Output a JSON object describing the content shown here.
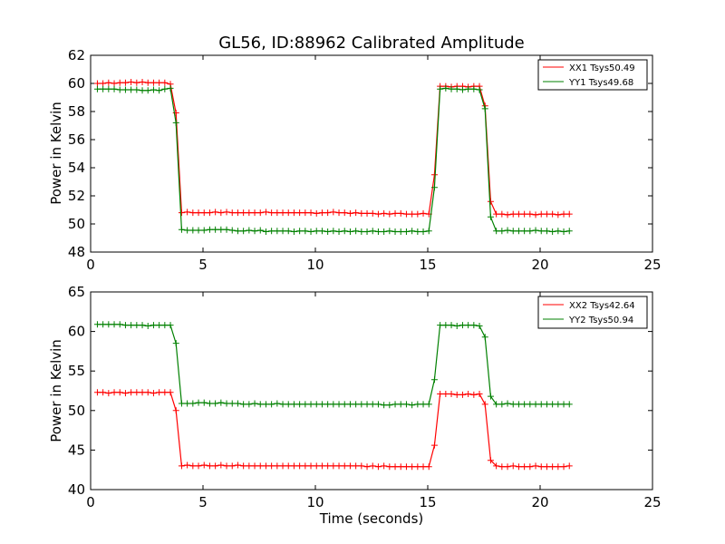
{
  "figure": {
    "title": "GL56, ID:88962 Calibrated Amplitude"
  },
  "chart_data": [
    {
      "type": "line",
      "title": "GL56, ID:88962 Calibrated Amplitude",
      "xlabel": "",
      "ylabel": "Power in Kelvin",
      "xlim": [
        0,
        25
      ],
      "ylim": [
        48,
        62
      ],
      "xticks": [
        0,
        5,
        10,
        15,
        20,
        25
      ],
      "yticks": [
        48,
        50,
        52,
        54,
        56,
        58,
        60,
        62
      ],
      "grid": false,
      "legend_position": "top-right",
      "x": [
        0.3,
        0.55,
        0.8,
        1.05,
        1.3,
        1.55,
        1.8,
        2.05,
        2.3,
        2.55,
        2.8,
        3.05,
        3.3,
        3.55,
        3.8,
        4.05,
        4.3,
        4.55,
        4.8,
        5.05,
        5.3,
        5.55,
        5.8,
        6.05,
        6.3,
        6.55,
        6.8,
        7.05,
        7.3,
        7.55,
        7.8,
        8.05,
        8.3,
        8.55,
        8.8,
        9.05,
        9.3,
        9.55,
        9.8,
        10.05,
        10.3,
        10.55,
        10.8,
        11.05,
        11.3,
        11.55,
        11.8,
        12.05,
        12.3,
        12.55,
        12.8,
        13.05,
        13.3,
        13.55,
        13.8,
        14.05,
        14.3,
        14.55,
        14.8,
        15.05,
        15.3,
        15.55,
        15.8,
        16.05,
        16.3,
        16.55,
        16.8,
        17.05,
        17.3,
        17.55,
        17.8,
        18.05,
        18.3,
        18.55,
        18.8,
        19.05,
        19.3,
        19.55,
        19.8,
        20.05,
        20.3,
        20.55,
        20.8,
        21.05,
        21.3
      ],
      "series": [
        {
          "name": "XX1 Tsys50.49",
          "color": "#ff0000",
          "values": [
            60.0,
            60.0,
            60.05,
            60.0,
            60.05,
            60.05,
            60.1,
            60.05,
            60.1,
            60.05,
            60.05,
            60.05,
            60.05,
            59.95,
            57.9,
            50.8,
            50.85,
            50.8,
            50.8,
            50.8,
            50.8,
            50.85,
            50.8,
            50.85,
            50.8,
            50.8,
            50.8,
            50.8,
            50.8,
            50.8,
            50.85,
            50.8,
            50.8,
            50.8,
            50.8,
            50.8,
            50.8,
            50.8,
            50.8,
            50.75,
            50.8,
            50.8,
            50.85,
            50.8,
            50.8,
            50.75,
            50.8,
            50.75,
            50.75,
            50.75,
            50.7,
            50.75,
            50.7,
            50.75,
            50.75,
            50.7,
            50.7,
            50.7,
            50.75,
            50.7,
            53.5,
            59.8,
            59.8,
            59.75,
            59.8,
            59.8,
            59.75,
            59.8,
            59.8,
            58.4,
            51.6,
            50.7,
            50.7,
            50.65,
            50.7,
            50.7,
            50.7,
            50.7,
            50.65,
            50.7,
            50.7,
            50.7,
            50.65,
            50.7,
            50.7
          ]
        },
        {
          "name": "YY1 Tsys49.68",
          "color": "#008000",
          "values": [
            59.6,
            59.6,
            59.6,
            59.6,
            59.55,
            59.55,
            59.55,
            59.55,
            59.5,
            59.5,
            59.55,
            59.5,
            59.6,
            59.65,
            57.2,
            49.6,
            49.55,
            49.55,
            49.55,
            49.55,
            49.6,
            49.6,
            49.6,
            49.6,
            49.55,
            49.5,
            49.5,
            49.55,
            49.5,
            49.55,
            49.45,
            49.5,
            49.5,
            49.5,
            49.5,
            49.45,
            49.5,
            49.5,
            49.45,
            49.5,
            49.5,
            49.45,
            49.5,
            49.45,
            49.5,
            49.45,
            49.5,
            49.45,
            49.45,
            49.5,
            49.45,
            49.45,
            49.5,
            49.45,
            49.45,
            49.45,
            49.5,
            49.45,
            49.45,
            49.5,
            52.6,
            59.6,
            59.65,
            59.6,
            59.6,
            59.55,
            59.6,
            59.6,
            59.55,
            58.2,
            50.5,
            49.5,
            49.5,
            49.55,
            49.5,
            49.5,
            49.5,
            49.5,
            49.55,
            49.5,
            49.5,
            49.45,
            49.5,
            49.45,
            49.5
          ]
        }
      ]
    },
    {
      "type": "line",
      "title": "",
      "xlabel": "Time (seconds)",
      "ylabel": "Power in Kelvin",
      "xlim": [
        0,
        25
      ],
      "ylim": [
        40,
        65
      ],
      "xticks": [
        0,
        5,
        10,
        15,
        20,
        25
      ],
      "yticks": [
        40,
        45,
        50,
        55,
        60,
        65
      ],
      "grid": false,
      "legend_position": "top-right",
      "x": [
        0.3,
        0.55,
        0.8,
        1.05,
        1.3,
        1.55,
        1.8,
        2.05,
        2.3,
        2.55,
        2.8,
        3.05,
        3.3,
        3.55,
        3.8,
        4.05,
        4.3,
        4.55,
        4.8,
        5.05,
        5.3,
        5.55,
        5.8,
        6.05,
        6.3,
        6.55,
        6.8,
        7.05,
        7.3,
        7.55,
        7.8,
        8.05,
        8.3,
        8.55,
        8.8,
        9.05,
        9.3,
        9.55,
        9.8,
        10.05,
        10.3,
        10.55,
        10.8,
        11.05,
        11.3,
        11.55,
        11.8,
        12.05,
        12.3,
        12.55,
        12.8,
        13.05,
        13.3,
        13.55,
        13.8,
        14.05,
        14.3,
        14.55,
        14.8,
        15.05,
        15.3,
        15.55,
        15.8,
        16.05,
        16.3,
        16.55,
        16.8,
        17.05,
        17.3,
        17.55,
        17.8,
        18.05,
        18.3,
        18.55,
        18.8,
        19.05,
        19.3,
        19.55,
        19.8,
        20.05,
        20.3,
        20.55,
        20.8,
        21.05,
        21.3
      ],
      "series": [
        {
          "name": "XX2 Tsys42.64",
          "color": "#ff0000",
          "values": [
            52.3,
            52.3,
            52.2,
            52.3,
            52.3,
            52.2,
            52.3,
            52.3,
            52.3,
            52.3,
            52.2,
            52.3,
            52.3,
            52.3,
            50.0,
            43.0,
            43.1,
            43.0,
            43.0,
            43.1,
            43.0,
            43.0,
            43.1,
            43.0,
            43.0,
            43.1,
            43.0,
            43.0,
            43.0,
            43.0,
            43.0,
            43.0,
            43.0,
            43.0,
            43.0,
            43.0,
            43.0,
            43.0,
            43.0,
            43.0,
            43.0,
            43.0,
            43.0,
            43.0,
            43.0,
            43.0,
            43.0,
            43.0,
            42.9,
            43.0,
            42.9,
            43.0,
            42.9,
            42.9,
            42.9,
            42.9,
            42.9,
            42.9,
            42.9,
            42.9,
            45.6,
            52.1,
            52.1,
            52.1,
            52.0,
            52.0,
            52.1,
            52.0,
            52.1,
            50.8,
            43.7,
            43.0,
            42.9,
            42.9,
            43.0,
            42.9,
            42.9,
            42.9,
            43.0,
            42.9,
            42.9,
            42.9,
            42.9,
            42.9,
            43.0
          ]
        },
        {
          "name": "YY2 Tsys50.94",
          "color": "#008000",
          "values": [
            60.9,
            60.9,
            60.9,
            60.9,
            60.9,
            60.8,
            60.8,
            60.8,
            60.8,
            60.7,
            60.8,
            60.8,
            60.8,
            60.8,
            58.5,
            50.9,
            50.9,
            50.9,
            51.0,
            51.0,
            50.9,
            50.9,
            51.0,
            50.9,
            50.9,
            50.9,
            50.8,
            50.8,
            50.9,
            50.8,
            50.8,
            50.8,
            50.9,
            50.8,
            50.8,
            50.8,
            50.8,
            50.8,
            50.8,
            50.8,
            50.8,
            50.8,
            50.8,
            50.8,
            50.8,
            50.8,
            50.8,
            50.8,
            50.8,
            50.8,
            50.8,
            50.7,
            50.7,
            50.8,
            50.8,
            50.8,
            50.7,
            50.8,
            50.8,
            50.8,
            53.9,
            60.8,
            60.8,
            60.8,
            60.7,
            60.8,
            60.8,
            60.8,
            60.7,
            59.3,
            51.8,
            50.8,
            50.8,
            50.9,
            50.8,
            50.8,
            50.8,
            50.8,
            50.8,
            50.8,
            50.8,
            50.8,
            50.8,
            50.8,
            50.8
          ]
        }
      ]
    }
  ]
}
